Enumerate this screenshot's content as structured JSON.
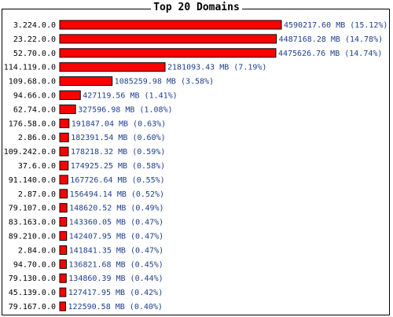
{
  "chart_data": {
    "type": "bar",
    "orientation": "horizontal",
    "title": "Top 20 Domains",
    "colors": {
      "bar": "#ff0000",
      "bar_border": "#000000",
      "value_text": "#1f3f8f"
    },
    "categories": [
      "3.224.0.0",
      "23.22.0.0",
      "52.70.0.0",
      "114.119.0.0",
      "109.68.0.0",
      "94.66.0.0",
      "62.74.0.0",
      "176.58.0.0",
      "2.86.0.0",
      "109.242.0.0",
      "37.6.0.0",
      "91.140.0.0",
      "2.87.0.0",
      "79.107.0.0",
      "83.163.0.0",
      "89.210.0.0",
      "2.84.0.0",
      "94.70.0.0",
      "79.130.0.0",
      "45.139.0.0",
      "79.167.0.0"
    ],
    "values": [
      4590217.6,
      4487168.28,
      4475626.76,
      2181093.43,
      1085259.98,
      427119.56,
      327596.98,
      191847.04,
      182391.54,
      178218.32,
      174925.25,
      167726.64,
      156494.14,
      148620.52,
      143360.05,
      142407.95,
      141841.35,
      136821.68,
      134860.39,
      127417.95,
      122590.58
    ],
    "value_labels": [
      "4590217.60 MB (15.12%)",
      "4487168.28 MB (14.78%)",
      "4475626.76 MB (14.74%)",
      "2181093.43 MB (7.19%)",
      "1085259.98 MB (3.58%)",
      "427119.56 MB (1.41%)",
      "327596.98 MB (1.08%)",
      "191847.04 MB (0.63%)",
      "182391.54 MB (0.60%)",
      "178218.32 MB (0.59%)",
      "174925.25 MB (0.58%)",
      "167726.64 MB (0.55%)",
      "156494.14 MB (0.52%)",
      "148620.52 MB (0.49%)",
      "143360.05 MB (0.47%)",
      "142407.95 MB (0.47%)",
      "141841.35 MB (0.47%)",
      "136821.68 MB (0.45%)",
      "134860.39 MB (0.44%)",
      "127417.95 MB (0.42%)",
      "122590.58 MB (0.40%)"
    ]
  }
}
